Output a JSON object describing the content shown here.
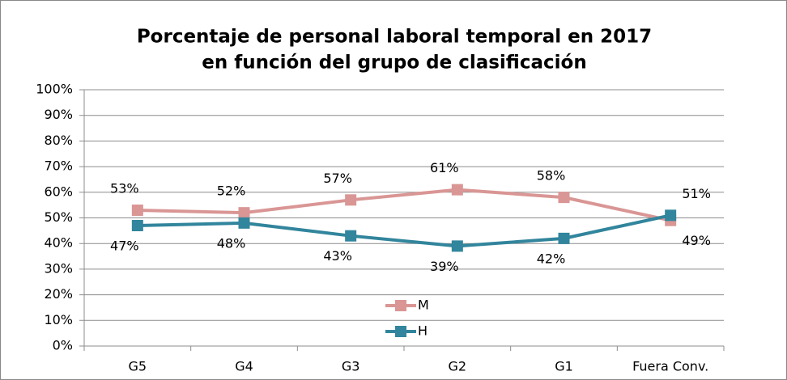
{
  "chart_data": {
    "type": "line",
    "title": [
      "Porcentaje de personal laboral temporal en 2017",
      "en función del grupo de clasificación"
    ],
    "categories": [
      "G5",
      "G4",
      "G3",
      "G2",
      "G1",
      "Fuera Conv."
    ],
    "series": [
      {
        "name": "M",
        "color": "#d99694",
        "values": [
          53,
          52,
          57,
          61,
          58,
          49
        ],
        "value_labels": [
          "53%",
          "52%",
          "57%",
          "61%",
          "58%",
          "49%"
        ]
      },
      {
        "name": "H",
        "color": "#31859c",
        "values": [
          47,
          48,
          43,
          39,
          42,
          51
        ],
        "value_labels": [
          "47%",
          "48%",
          "43%",
          "39%",
          "42%",
          "51%"
        ]
      }
    ],
    "ylim": [
      0,
      100
    ],
    "yticks": [
      {
        "value": 0,
        "label": "0%"
      },
      {
        "value": 10,
        "label": "10%"
      },
      {
        "value": 20,
        "label": "20%"
      },
      {
        "value": 30,
        "label": "30%"
      },
      {
        "value": 40,
        "label": "40%"
      },
      {
        "value": 50,
        "label": "50%"
      },
      {
        "value": 60,
        "label": "60%"
      },
      {
        "value": 70,
        "label": "70%"
      },
      {
        "value": 80,
        "label": "80%"
      },
      {
        "value": 90,
        "label": "90%"
      },
      {
        "value": 100,
        "label": "100%"
      }
    ],
    "grid": true
  }
}
